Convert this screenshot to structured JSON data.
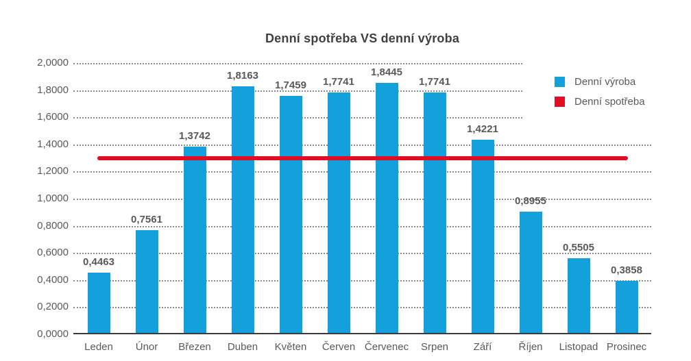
{
  "chart_data": {
    "type": "bar",
    "title": "Denní spotřeba VS denní výroba",
    "categories": [
      "Leden",
      "Únor",
      "Březen",
      "Duben",
      "Květen",
      "Červen",
      "Červenec",
      "Srpen",
      "Září",
      "Říjen",
      "Listopad",
      "Prosinec"
    ],
    "series": [
      {
        "name": "Denní výroba",
        "type": "bar",
        "color": "#14A0DB",
        "values": [
          0.4463,
          0.7561,
          1.3742,
          1.8163,
          1.7459,
          1.7741,
          1.8445,
          1.7741,
          1.4221,
          0.8955,
          0.5505,
          0.3858
        ],
        "value_labels": [
          "0,4463",
          "0,7561",
          "1,3742",
          "1,8163",
          "1,7459",
          "1,7741",
          "1,8445",
          "1,7741",
          "1,4221",
          "0,8955",
          "0,5505",
          "0,3858"
        ]
      },
      {
        "name": "Denní spotřeba",
        "type": "line",
        "color": "#E20C24",
        "value": 1.3
      }
    ],
    "ylim": [
      0,
      2
    ],
    "ytick_step": 0.2,
    "ytick_labels": [
      "0,0000",
      "0,2000",
      "0,4000",
      "0,6000",
      "0,8000",
      "1,0000",
      "1,2000",
      "1,4000",
      "1,6000",
      "1,8000",
      "2,0000"
    ],
    "grid": {
      "horizontal": true,
      "style": "dotted",
      "color": "#8A8A8A"
    },
    "legend_position": "right"
  },
  "colors": {
    "bar_blue": "#14A0DB",
    "line_red": "#E20C24",
    "title_text": "#404040",
    "axis_text": "#595959",
    "gridline": "#8A8A8A",
    "axis_line": "#3A3A3A",
    "background": "#FFFFFF"
  }
}
